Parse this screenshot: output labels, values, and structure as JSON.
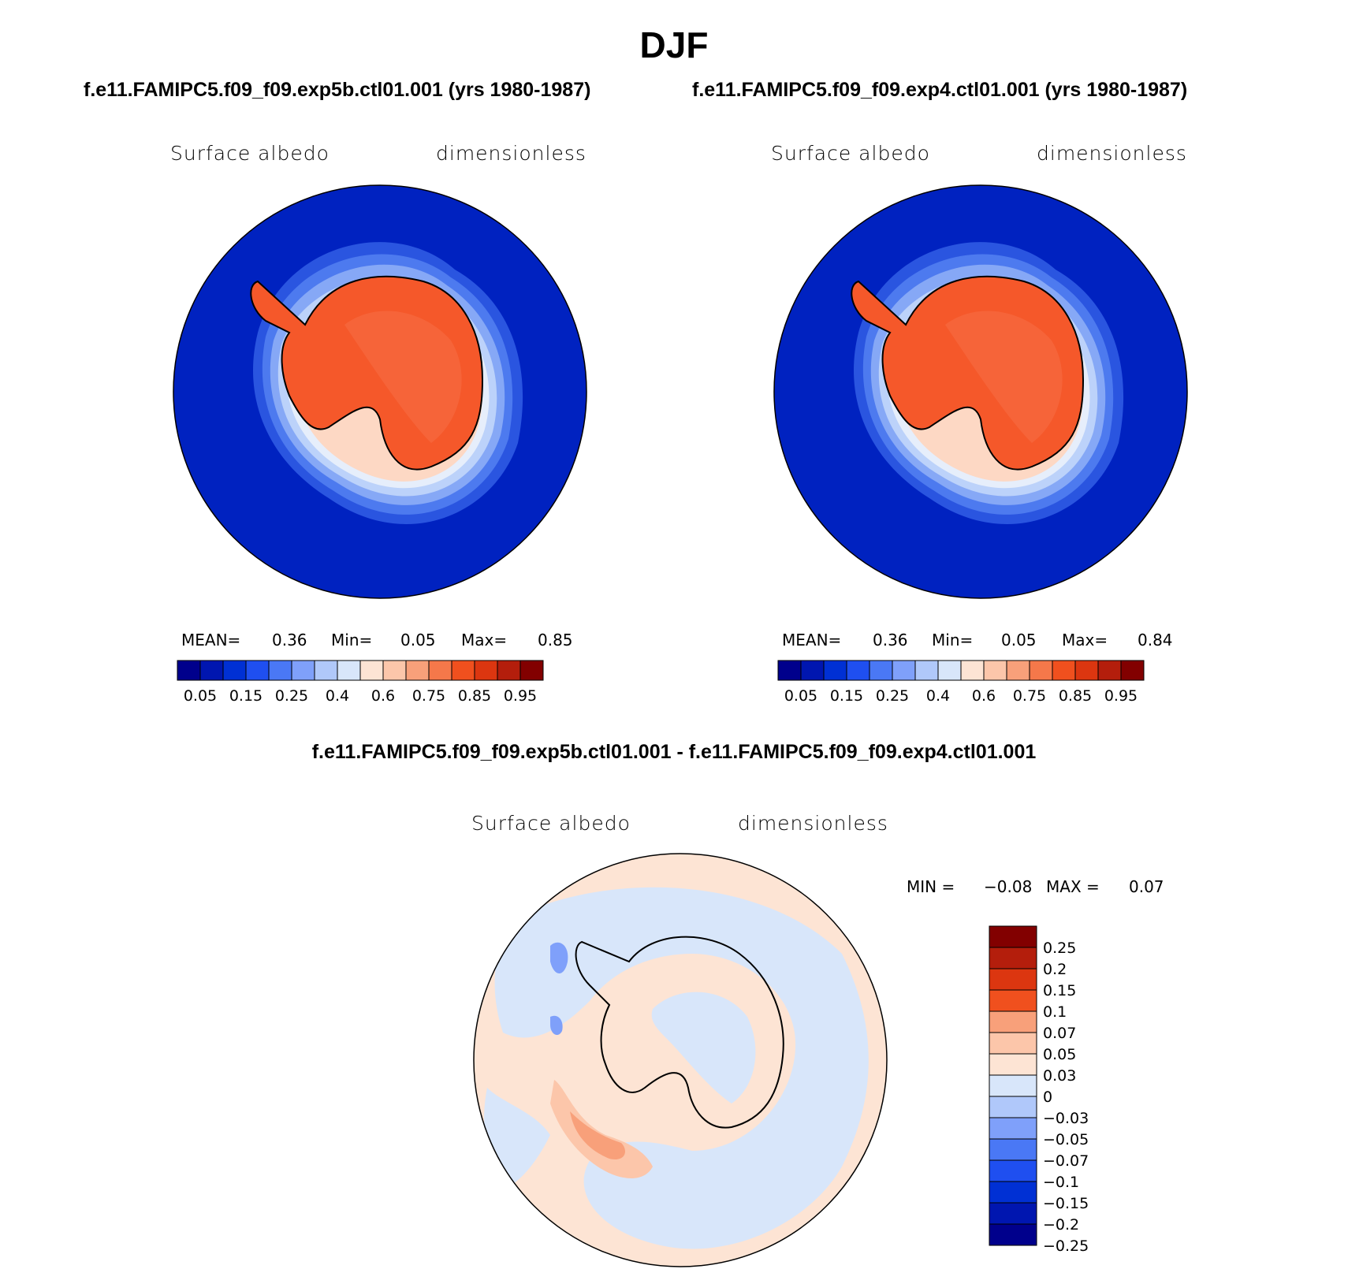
{
  "title": "DJF",
  "diff_title": "f.e11.FAMIPC5.f09_f09.exp5b.ctl01.001 - f.e11.FAMIPC5.f09_f09.exp4.ctl01.001",
  "panels": [
    {
      "case_title": "f.e11.FAMIPC5.f09_f09.exp5b.ctl01.001 (yrs 1980-1987)",
      "variable": "Surface albedo",
      "units": "dimensionless",
      "stats": {
        "mean_label": "MEAN=",
        "mean": "0.36",
        "min_label": "Min=",
        "min": "0.05",
        "max_label": "Max=",
        "max": "0.85"
      }
    },
    {
      "case_title": "f.e11.FAMIPC5.f09_f09.exp4.ctl01.001 (yrs 1980-1987)",
      "variable": "Surface albedo",
      "units": "dimensionless",
      "stats": {
        "mean_label": "MEAN=",
        "mean": "0.36",
        "min_label": "Min=",
        "min": "0.05",
        "max_label": "Max=",
        "max": "0.84"
      }
    }
  ],
  "diff_panel": {
    "variable": "Surface albedo",
    "units": "dimensionless",
    "stats": {
      "min_label": "MIN =",
      "min": "−0.08",
      "max_label": "MAX =",
      "max": "0.07"
    }
  },
  "colorbar_main": {
    "colors": [
      "#00008c",
      "#0016b0",
      "#0030d4",
      "#1f4ff0",
      "#4a78f5",
      "#7fa0fa",
      "#b0c8fa",
      "#d8e6fa",
      "#fde4d4",
      "#fcc6aa",
      "#f8a07a",
      "#f5784a",
      "#f0501e",
      "#dc3610",
      "#b41e0c",
      "#820000"
    ],
    "tick_labels": [
      "0.05",
      "0.15",
      "0.25",
      "0.4",
      "0.6",
      "0.75",
      "0.85",
      "0.95"
    ]
  },
  "colorbar_diff": {
    "colors_top_to_bottom": [
      "#820000",
      "#b41e0c",
      "#dc3610",
      "#f0501e",
      "#f8a07a",
      "#fcc6aa",
      "#fde4d4",
      "#d8e6fa",
      "#b0c8fa",
      "#7fa0fa",
      "#4a78f5",
      "#1f4ff0",
      "#0030d4",
      "#0016b0",
      "#00008c"
    ],
    "tick_labels": [
      "0.25",
      "0.2",
      "0.15",
      "0.1",
      "0.07",
      "0.05",
      "0.03",
      "0",
      "−0.03",
      "−0.05",
      "−0.07",
      "−0.1",
      "−0.15",
      "−0.2",
      "−0.25"
    ]
  },
  "map_colors": {
    "ocean": "#0022c0",
    "ice_edge": [
      "#2a55e0",
      "#4d7aef",
      "#86a8f6",
      "#bcd2fa",
      "#e6eefb",
      "#fdd8c4"
    ],
    "continent": "#f5582a",
    "continent_light": "#f77850",
    "diff_pos": "#fde4d4",
    "diff_neg": "#d8e6fa",
    "diff_pos2": "#fcc6aa",
    "diff_pos3": "#f8a07a",
    "diff_neg2": "#7fa0fa"
  }
}
